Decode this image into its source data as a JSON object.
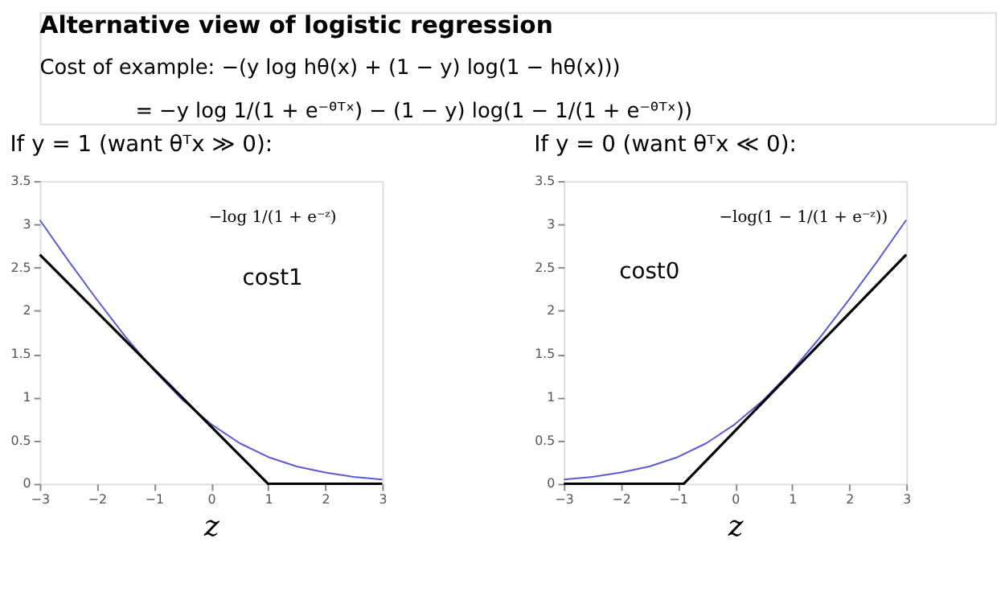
{
  "chart_data": [
    {
      "type": "line",
      "title": "Alternative view of logistic regression",
      "subtitle": "Cost of example:   −(y log hθ(x) + (1 − y) log(1 − hθ(x)))\n= −y log 1/(1 + e⁻ᶿᵀˣ) − (1 − y) log(1 − 1/(1 + e⁻ᶿᵀˣ))\nIf y = 1 (want θᵀx ≫ 0):",
      "xlabel": "z",
      "series": [
        {
          "color": "#5b5bd6",
          "x": [
            -3,
            -2.5,
            -2,
            -1.5,
            -1,
            -0.5,
            0,
            0.5,
            1,
            1.5,
            2,
            2.5,
            3
          ],
          "values": [
            3.05,
            2.58,
            2.13,
            1.7,
            1.31,
            0.97,
            0.69,
            0.47,
            0.31,
            0.2,
            0.13,
            0.08,
            0.05
          ]
        },
        {
          "color": "#000000",
          "x": [
            -3,
            1,
            3
          ],
          "values": [
            2.65,
            0,
            0
          ]
        }
      ],
      "xlim": [
        -3,
        3
      ],
      "xticks": [
        -3,
        -2,
        -1,
        0,
        1,
        2,
        3
      ],
      "ylim": [
        0,
        3.5
      ],
      "yticks": [
        0,
        0.5,
        1,
        1.5,
        2,
        2.5,
        3,
        3.5
      ],
      "grid": false,
      "annotations": [
        "−log 1/(1 + e⁻ᶻ)",
        "cost1"
      ]
    },
    {
      "type": "line",
      "title": "If y = 0 (want θᵀx ≪ 0):",
      "xlabel": "z",
      "series": [
        {
          "color": "#5b5bd6",
          "x": [
            -3,
            -2.5,
            -2,
            -1.5,
            -1,
            -0.5,
            0,
            0.5,
            1,
            1.5,
            2,
            2.5,
            3
          ],
          "values": [
            0.05,
            0.08,
            0.13,
            0.2,
            0.31,
            0.47,
            0.69,
            0.97,
            1.31,
            1.7,
            2.13,
            2.58,
            3.05
          ]
        },
        {
          "color": "#000000",
          "x": [
            -3,
            -0.9,
            3
          ],
          "values": [
            0,
            0,
            2.65
          ]
        }
      ],
      "xlim": [
        -3,
        3
      ],
      "xticks": [
        -3,
        -2,
        -1,
        0,
        1,
        2,
        3
      ],
      "ylim": [
        0,
        3.5
      ],
      "yticks": [
        0,
        0.5,
        1,
        1.5,
        2,
        2.5,
        3,
        3.5
      ],
      "grid": false,
      "annotations": [
        "−log(1 − 1/(1 + e⁻ᶻ))",
        "cost0"
      ]
    }
  ]
}
